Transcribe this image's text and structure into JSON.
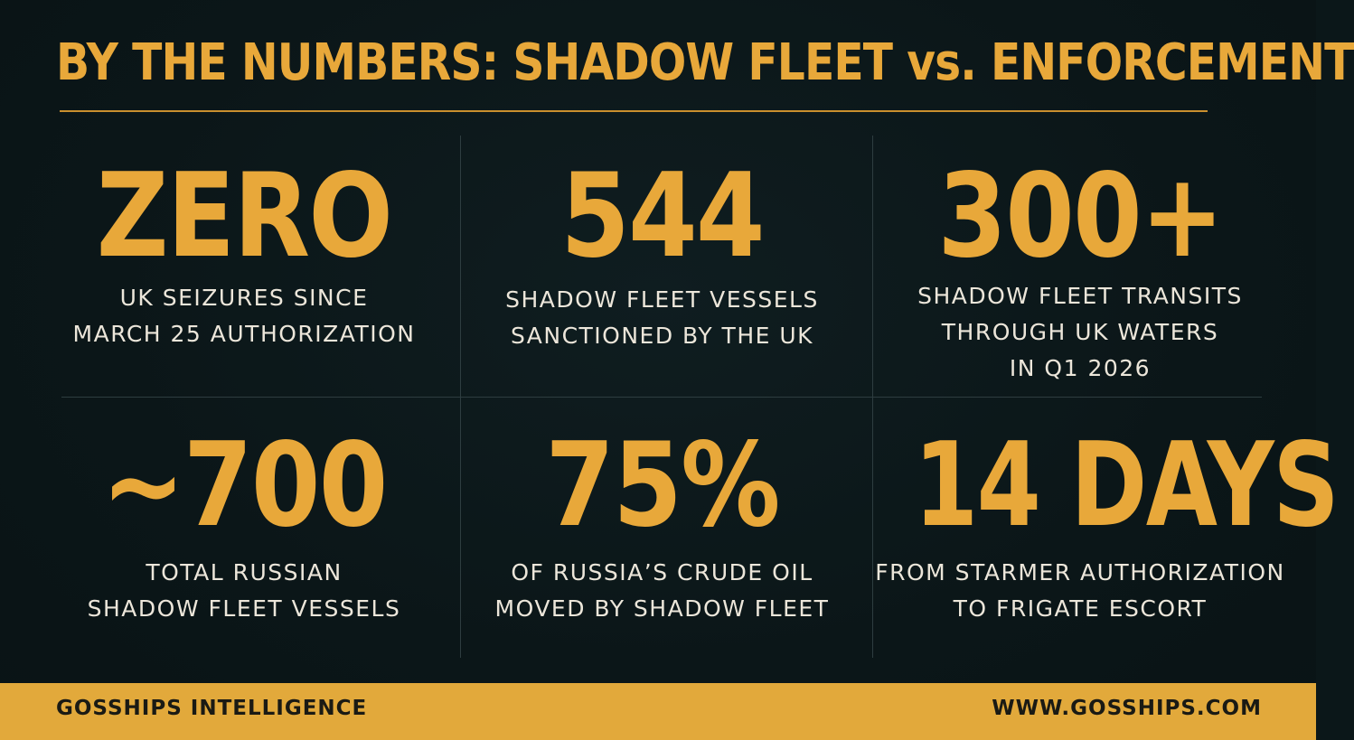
{
  "header": {
    "title": "BY THE NUMBERS: SHADOW FLEET vs. ENFORCEMENT"
  },
  "stats": [
    {
      "value": "ZERO",
      "label": "UK SEIZURES SINCE\nMARCH 25 AUTHORIZATION"
    },
    {
      "value": "544",
      "label": "SHADOW FLEET VESSELS\nSANCTIONED BY THE UK"
    },
    {
      "value": "300+",
      "label": "SHADOW FLEET TRANSITS\nTHROUGH UK WATERS\nIN Q1 2026"
    },
    {
      "value": "~700",
      "label": "TOTAL RUSSIAN\nSHADOW FLEET VESSELS"
    },
    {
      "value": "75%",
      "label": "OF RUSSIA’S CRUDE OIL\nMOVED BY SHADOW FLEET"
    },
    {
      "value": "14 DAYS",
      "label": "FROM STARMER AUTHORIZATION\nTO FRIGATE ESCORT"
    }
  ],
  "footer": {
    "brand": "GOSSHIPS INTELLIGENCE",
    "url": "WWW.GOSSHIPS.COM"
  },
  "colors": {
    "background": "#0b1719",
    "accent": "#e8a83a",
    "text": "#ece6da",
    "footer_bg": "#e2a93b"
  }
}
